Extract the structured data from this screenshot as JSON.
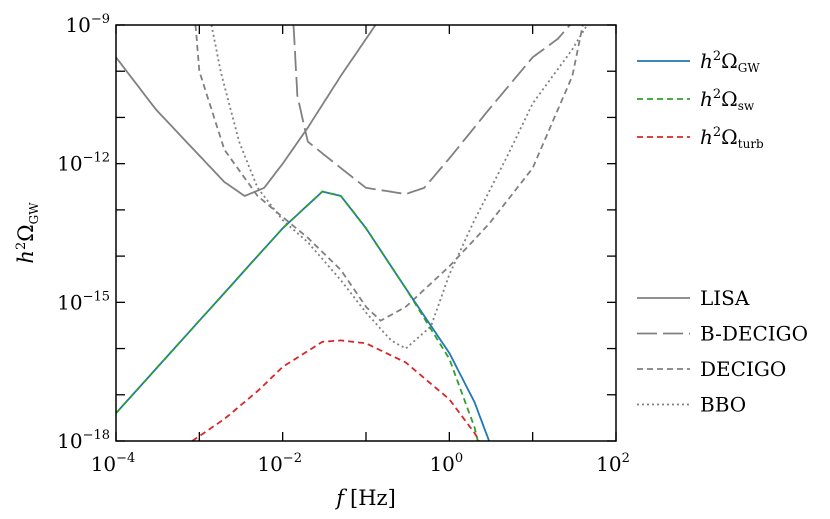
{
  "chart_data": {
    "type": "line",
    "xscale": "log",
    "yscale": "log",
    "xlim": [
      0.0001,
      100
    ],
    "ylim": [
      1e-18,
      1e-09
    ],
    "xlabel": {
      "var": "f",
      "unit": "[Hz]"
    },
    "ylabel": {
      "base": "h",
      "sup": "2",
      "omega": "Ω",
      "sub": "GW"
    },
    "x_ticks": [
      {
        "value": 0.0001,
        "base": "10",
        "exp": "−4"
      },
      {
        "value": 0.01,
        "base": "10",
        "exp": "−2"
      },
      {
        "value": 1,
        "base": "10",
        "exp": "0"
      },
      {
        "value": 100,
        "base": "10",
        "exp": "2"
      }
    ],
    "y_ticks": [
      {
        "value": 1e-18,
        "base": "10",
        "exp": "−18"
      },
      {
        "value": 1e-15,
        "base": "10",
        "exp": "−15"
      },
      {
        "value": 1e-12,
        "base": "10",
        "exp": "−12"
      },
      {
        "value": 1e-09,
        "base": "10",
        "exp": "−9"
      }
    ],
    "signal_series": [
      {
        "name": "h2OmegaGW",
        "label_base": "h",
        "label_sup": "2",
        "label_omega": "Ω",
        "label_sub": "GW",
        "color": "#1f77b4",
        "dash": "solid",
        "x": [
          0.0001,
          0.001,
          0.01,
          0.03,
          0.05,
          0.1,
          0.3,
          1,
          2,
          3
        ],
        "y": [
          4e-18,
          4e-16,
          4e-14,
          2.5e-13,
          2e-13,
          4e-14,
          2e-15,
          8e-17,
          7e-18,
          1e-18
        ]
      },
      {
        "name": "h2OmegaSW",
        "label_base": "h",
        "label_sup": "2",
        "label_omega": "Ω",
        "label_sub": "sw",
        "color": "#2ca02c",
        "dash": "dashed",
        "x": [
          0.0001,
          0.001,
          0.01,
          0.03,
          0.05,
          0.1,
          0.3,
          1,
          2,
          2.2
        ],
        "y": [
          4e-18,
          4e-16,
          4e-14,
          2.5e-13,
          2e-13,
          4e-14,
          2e-15,
          6e-17,
          2e-18,
          1e-18
        ]
      },
      {
        "name": "h2OmegaTurb",
        "label_base": "h",
        "label_sup": "2",
        "label_omega": "Ω",
        "label_sub": "turb",
        "color": "#d62728",
        "dash": "dashed",
        "x": [
          0.00082,
          0.002,
          0.005,
          0.01,
          0.03,
          0.05,
          0.1,
          0.3,
          1,
          2,
          2.3
        ],
        "y": [
          1e-18,
          3e-18,
          1.2e-17,
          4e-17,
          1.4e-16,
          1.5e-16,
          1.3e-16,
          5e-17,
          8e-18,
          1.5e-18,
          1e-18
        ]
      }
    ],
    "sensitivity_series": [
      {
        "name": "LISA",
        "label": "LISA",
        "color": "#808080",
        "dash": "solid",
        "x": [
          0.0001,
          0.0003,
          0.001,
          0.002,
          0.0035,
          0.006,
          0.01,
          0.02,
          0.05,
          0.1,
          0.13
        ],
        "y": [
          2e-10,
          1.5e-11,
          1.5e-12,
          4e-13,
          2e-13,
          3e-13,
          1e-12,
          6e-12,
          8e-11,
          5e-10,
          1e-09
        ]
      },
      {
        "name": "B-DECIGO",
        "label": "B-DECIGO",
        "color": "#808080",
        "dash": "longdash",
        "x": [
          0.0135,
          0.015,
          0.02,
          0.05,
          0.1,
          0.3,
          0.5,
          1,
          3,
          10,
          20,
          28
        ],
        "y": [
          1e-09,
          3e-11,
          3e-12,
          8e-13,
          3e-13,
          2.2e-13,
          3e-13,
          1.3e-12,
          1.5e-11,
          2e-10,
          5e-10,
          1e-09
        ]
      },
      {
        "name": "DECIGO",
        "label": "DECIGO",
        "color": "#808080",
        "dash": "dashed",
        "x": [
          0.0009,
          0.001,
          0.002,
          0.005,
          0.01,
          0.02,
          0.05,
          0.1,
          0.15,
          0.3,
          1,
          3,
          10,
          30,
          40
        ],
        "y": [
          1e-09,
          1e-10,
          2e-12,
          2e-13,
          7e-14,
          2.5e-14,
          5e-15,
          8e-16,
          4e-16,
          8e-16,
          6e-15,
          5e-14,
          8e-13,
          8e-11,
          1e-09
        ]
      },
      {
        "name": "BBO",
        "label": "BBO",
        "color": "#808080",
        "dash": "dotted",
        "x": [
          0.0014,
          0.0018,
          0.003,
          0.005,
          0.01,
          0.02,
          0.05,
          0.1,
          0.2,
          0.3,
          0.6,
          1,
          2,
          5,
          10,
          30,
          45
        ],
        "y": [
          1e-09,
          1e-10,
          3e-12,
          3e-13,
          6e-14,
          2e-14,
          3e-15,
          6e-16,
          1.5e-16,
          1e-16,
          3e-16,
          4e-15,
          6e-14,
          1.5e-12,
          2e-11,
          3e-10,
          1e-09
        ]
      }
    ]
  }
}
